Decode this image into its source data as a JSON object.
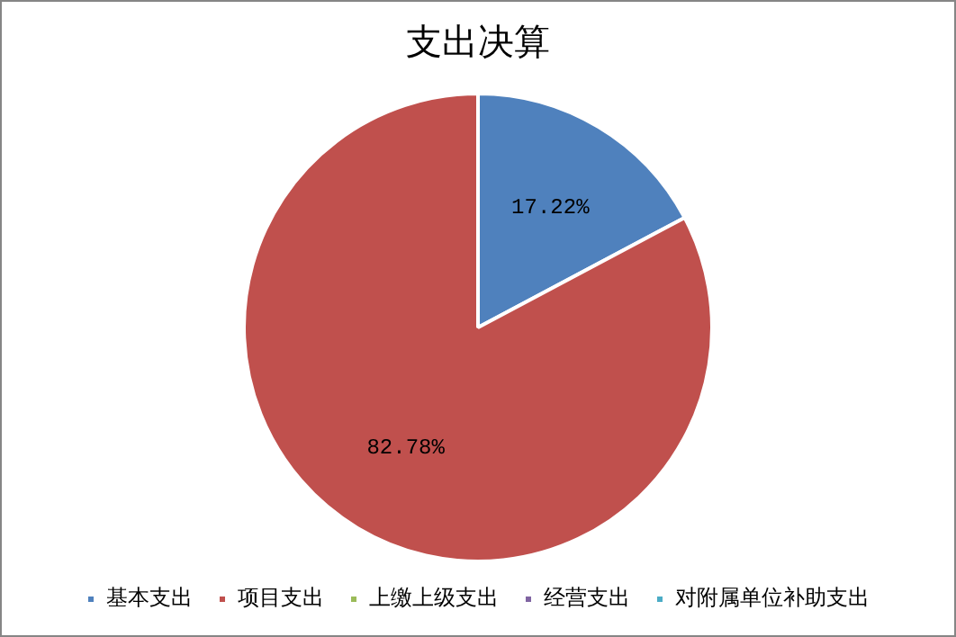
{
  "chart_data": {
    "type": "pie",
    "title": "支出决算",
    "categories": [
      "基本支出",
      "项目支出",
      "上缴上级支出",
      "经营支出",
      "对附属单位补助支出"
    ],
    "values": [
      17.22,
      82.78,
      0,
      0,
      0
    ],
    "colors": [
      "#4f81bd",
      "#c0504d",
      "#9bbb59",
      "#8064a2",
      "#4bacc6"
    ],
    "value_labels": [
      "17.22%",
      "82.78%",
      null,
      null,
      null
    ],
    "legend": "bottom"
  }
}
